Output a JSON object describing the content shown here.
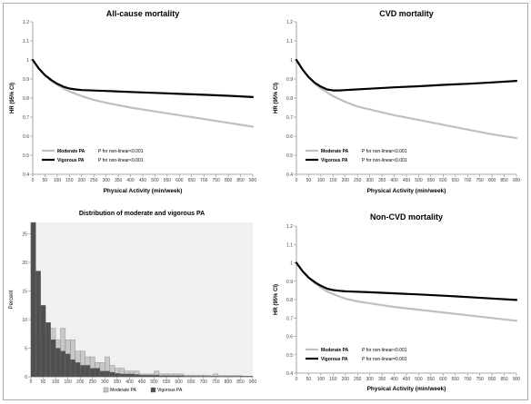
{
  "figure": {
    "border_color": "#a9a9a9"
  },
  "chart_data": [
    {
      "id": "all_cause",
      "type": "line",
      "title": "All-cause mortality",
      "xlabel": "Physical Activity (min/week)",
      "ylabel": "HR (95% CI)",
      "xlim": [
        0,
        900
      ],
      "ylim": [
        0.4,
        1.2
      ],
      "xticks": [
        0,
        50,
        100,
        150,
        200,
        250,
        300,
        350,
        400,
        450,
        500,
        550,
        600,
        650,
        700,
        750,
        800,
        850,
        900
      ],
      "yticks": [
        0.4,
        0.5,
        0.6,
        0.7,
        0.8,
        0.9,
        1.0,
        1.1,
        1.2
      ],
      "ytick_labels": [
        "0.4",
        "0.5",
        "0.6",
        "0.7",
        "0.8",
        "0.9",
        "1",
        "1.1",
        "1.2"
      ],
      "legend_position": "bottom-left",
      "series": [
        {
          "name": "Moderate PA",
          "annotation": "P for non-linear<0.001",
          "color": "#bfbfbf",
          "x": [
            0,
            25,
            50,
            75,
            100,
            125,
            150,
            200,
            250,
            300,
            400,
            500,
            600,
            700,
            800,
            900
          ],
          "y": [
            1.0,
            0.955,
            0.92,
            0.89,
            0.87,
            0.85,
            0.835,
            0.81,
            0.79,
            0.775,
            0.75,
            0.73,
            0.71,
            0.69,
            0.67,
            0.65
          ]
        },
        {
          "name": "Vigorous PA",
          "annotation": "P for non-linear<0.001",
          "color": "#000000",
          "x": [
            0,
            25,
            50,
            75,
            100,
            125,
            150,
            175,
            200,
            300,
            400,
            500,
            600,
            700,
            800,
            900
          ],
          "y": [
            1.0,
            0.955,
            0.92,
            0.895,
            0.875,
            0.86,
            0.85,
            0.845,
            0.842,
            0.837,
            0.832,
            0.827,
            0.822,
            0.817,
            0.812,
            0.805
          ]
        }
      ]
    },
    {
      "id": "cvd",
      "type": "line",
      "title": "CVD mortality",
      "xlabel": "Physical Activity (min/week)",
      "ylabel": "HR (95% CI)",
      "xlim": [
        0,
        900
      ],
      "ylim": [
        0.4,
        1.2
      ],
      "xticks": [
        0,
        50,
        100,
        150,
        200,
        250,
        300,
        350,
        400,
        450,
        500,
        550,
        600,
        650,
        700,
        750,
        800,
        850,
        900
      ],
      "yticks": [
        0.4,
        0.5,
        0.6,
        0.7,
        0.8,
        0.9,
        1.0,
        1.1,
        1.2
      ],
      "ytick_labels": [
        "0.4",
        "0.5",
        "0.6",
        "0.7",
        "0.8",
        "0.9",
        "1",
        "1.1",
        "1.2"
      ],
      "legend_position": "bottom-left",
      "series": [
        {
          "name": "Moderate PA",
          "annotation": "P for non-linear<0.001",
          "color": "#bfbfbf",
          "x": [
            0,
            25,
            50,
            75,
            100,
            125,
            150,
            200,
            250,
            300,
            400,
            500,
            600,
            700,
            800,
            900
          ],
          "y": [
            1.0,
            0.95,
            0.91,
            0.875,
            0.85,
            0.83,
            0.81,
            0.78,
            0.755,
            0.74,
            0.71,
            0.685,
            0.66,
            0.635,
            0.61,
            0.59
          ]
        },
        {
          "name": "Vigorous PA",
          "annotation": "P for non-linear<0.001",
          "color": "#000000",
          "x": [
            0,
            25,
            50,
            75,
            100,
            125,
            150,
            175,
            200,
            300,
            400,
            500,
            600,
            700,
            800,
            900
          ],
          "y": [
            1.0,
            0.95,
            0.91,
            0.88,
            0.86,
            0.845,
            0.84,
            0.84,
            0.842,
            0.849,
            0.856,
            0.862,
            0.869,
            0.875,
            0.882,
            0.89
          ]
        }
      ]
    },
    {
      "id": "distribution",
      "type": "bar",
      "title": "Distribution of moderate and vigorous PA",
      "xlabel": "",
      "ylabel": "Percent",
      "xlim": [
        0,
        900
      ],
      "ylim": [
        0,
        27
      ],
      "xticks": [
        0,
        50,
        100,
        150,
        200,
        250,
        300,
        350,
        400,
        450,
        500,
        550,
        600,
        650,
        700,
        750,
        800,
        850,
        900
      ],
      "yticks": [
        0,
        5,
        10,
        15,
        20,
        25
      ],
      "bin_width": 20,
      "legend_position": "bottom-center",
      "series": [
        {
          "name": "Moderate PA",
          "color": "#c8c8c8",
          "values": [
            3.5,
            6.5,
            7.5,
            6.5,
            8.5,
            6.5,
            8.5,
            6.5,
            6.5,
            4.5,
            4.5,
            3.5,
            3.5,
            2.5,
            2.5,
            3.5,
            2.0,
            1.5,
            1.5,
            1.0,
            1.0,
            1.0,
            0.5,
            0.5,
            0.5,
            1.0,
            0.5,
            0.5,
            0.5,
            0.5,
            0.5,
            0.3,
            0.3,
            0.3,
            0.3,
            0.3,
            0.2,
            0.5,
            0.2,
            0.2,
            0.2,
            0.2,
            0.2,
            0.1,
            0.1
          ]
        },
        {
          "name": "Vigorous PA",
          "color": "#505050",
          "values": [
            27,
            18.5,
            12.5,
            9.5,
            6.5,
            5,
            4.5,
            4,
            3,
            2.5,
            2,
            2,
            1.5,
            1.5,
            1,
            1,
            0.8,
            0.6,
            0.5,
            0.5,
            0.5,
            0.4,
            0.3,
            0.3,
            0.3,
            0.3,
            0.2,
            0.2,
            0.2,
            0.2,
            0.2,
            0.1,
            0.1,
            0.1,
            0.1,
            0.1,
            0.1,
            0.1,
            0.1,
            0.1,
            0.1,
            0.1,
            0.1,
            0.1,
            0.1
          ]
        }
      ]
    },
    {
      "id": "non_cvd",
      "type": "line",
      "title": "Non-CVD mortality",
      "xlabel": "Physical Activity (min/week)",
      "ylabel": "HR (95% CI)",
      "xlim": [
        0,
        900
      ],
      "ylim": [
        0.4,
        1.2
      ],
      "xticks": [
        0,
        50,
        100,
        150,
        200,
        250,
        300,
        350,
        400,
        450,
        500,
        550,
        600,
        650,
        700,
        750,
        800,
        850,
        900
      ],
      "yticks": [
        0.4,
        0.5,
        0.6,
        0.7,
        0.8,
        0.9,
        1.0,
        1.1,
        1.2
      ],
      "ytick_labels": [
        "0.4",
        "0.5",
        "0.6",
        "0.7",
        "0.8",
        "0.9",
        "1",
        "1.1",
        "1.2"
      ],
      "legend_position": "bottom-left",
      "series": [
        {
          "name": "Moderate PA",
          "annotation": "P for non-linear<0.001",
          "color": "#bfbfbf",
          "x": [
            0,
            25,
            50,
            75,
            100,
            125,
            150,
            200,
            250,
            300,
            400,
            500,
            600,
            700,
            800,
            900
          ],
          "y": [
            1.0,
            0.955,
            0.92,
            0.89,
            0.865,
            0.845,
            0.83,
            0.805,
            0.79,
            0.78,
            0.76,
            0.745,
            0.73,
            0.715,
            0.7,
            0.685
          ]
        },
        {
          "name": "Vigorous PA",
          "annotation": "P for non-linear=0.001",
          "color": "#000000",
          "x": [
            0,
            25,
            50,
            75,
            100,
            125,
            150,
            175,
            200,
            300,
            400,
            500,
            600,
            700,
            800,
            900
          ],
          "y": [
            1.0,
            0.955,
            0.92,
            0.895,
            0.875,
            0.86,
            0.852,
            0.848,
            0.845,
            0.84,
            0.834,
            0.828,
            0.821,
            0.814,
            0.806,
            0.798
          ]
        }
      ]
    }
  ]
}
